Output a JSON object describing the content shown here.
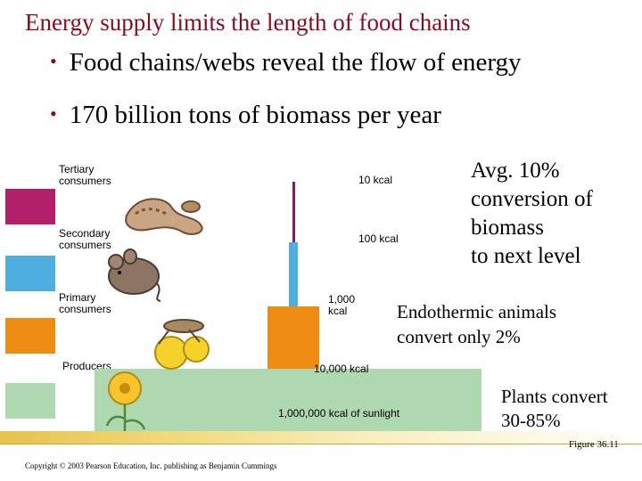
{
  "title": "Energy supply limits the length of food chains",
  "bullets": [
    "Food chains/webs  reveal the flow of energy",
    "170 billion tons of biomass per year"
  ],
  "levels": {
    "tertiary": "Tertiary consumers",
    "secondary": "Secondary consumers",
    "primary": "Primary consumers",
    "producers": "Producers"
  },
  "energy": {
    "tertiary": "10 kcal",
    "secondary": "100 kcal",
    "primary": "1,000 kcal",
    "producers": "10,000 kcal",
    "sunlight": "1,000,000 kcal of sunlight"
  },
  "notes": {
    "avg": [
      "Avg. 10%",
      "conversion of",
      "biomass",
      "to next level"
    ],
    "endothermic": [
      "Endothermic animals",
      "convert only 2%"
    ],
    "plants": [
      "Plants convert",
      "30-85%"
    ]
  },
  "figure": "Figure 36.11",
  "copyright": "Copyright © 2003 Pearson Education, Inc. publishing as Benjamin Cummings",
  "colors": {
    "title": "#8b0a1e",
    "tertiary": "#b3206a",
    "secondary": "#4faee0",
    "primary": "#ee8c14",
    "producers": "#aed8b0"
  }
}
